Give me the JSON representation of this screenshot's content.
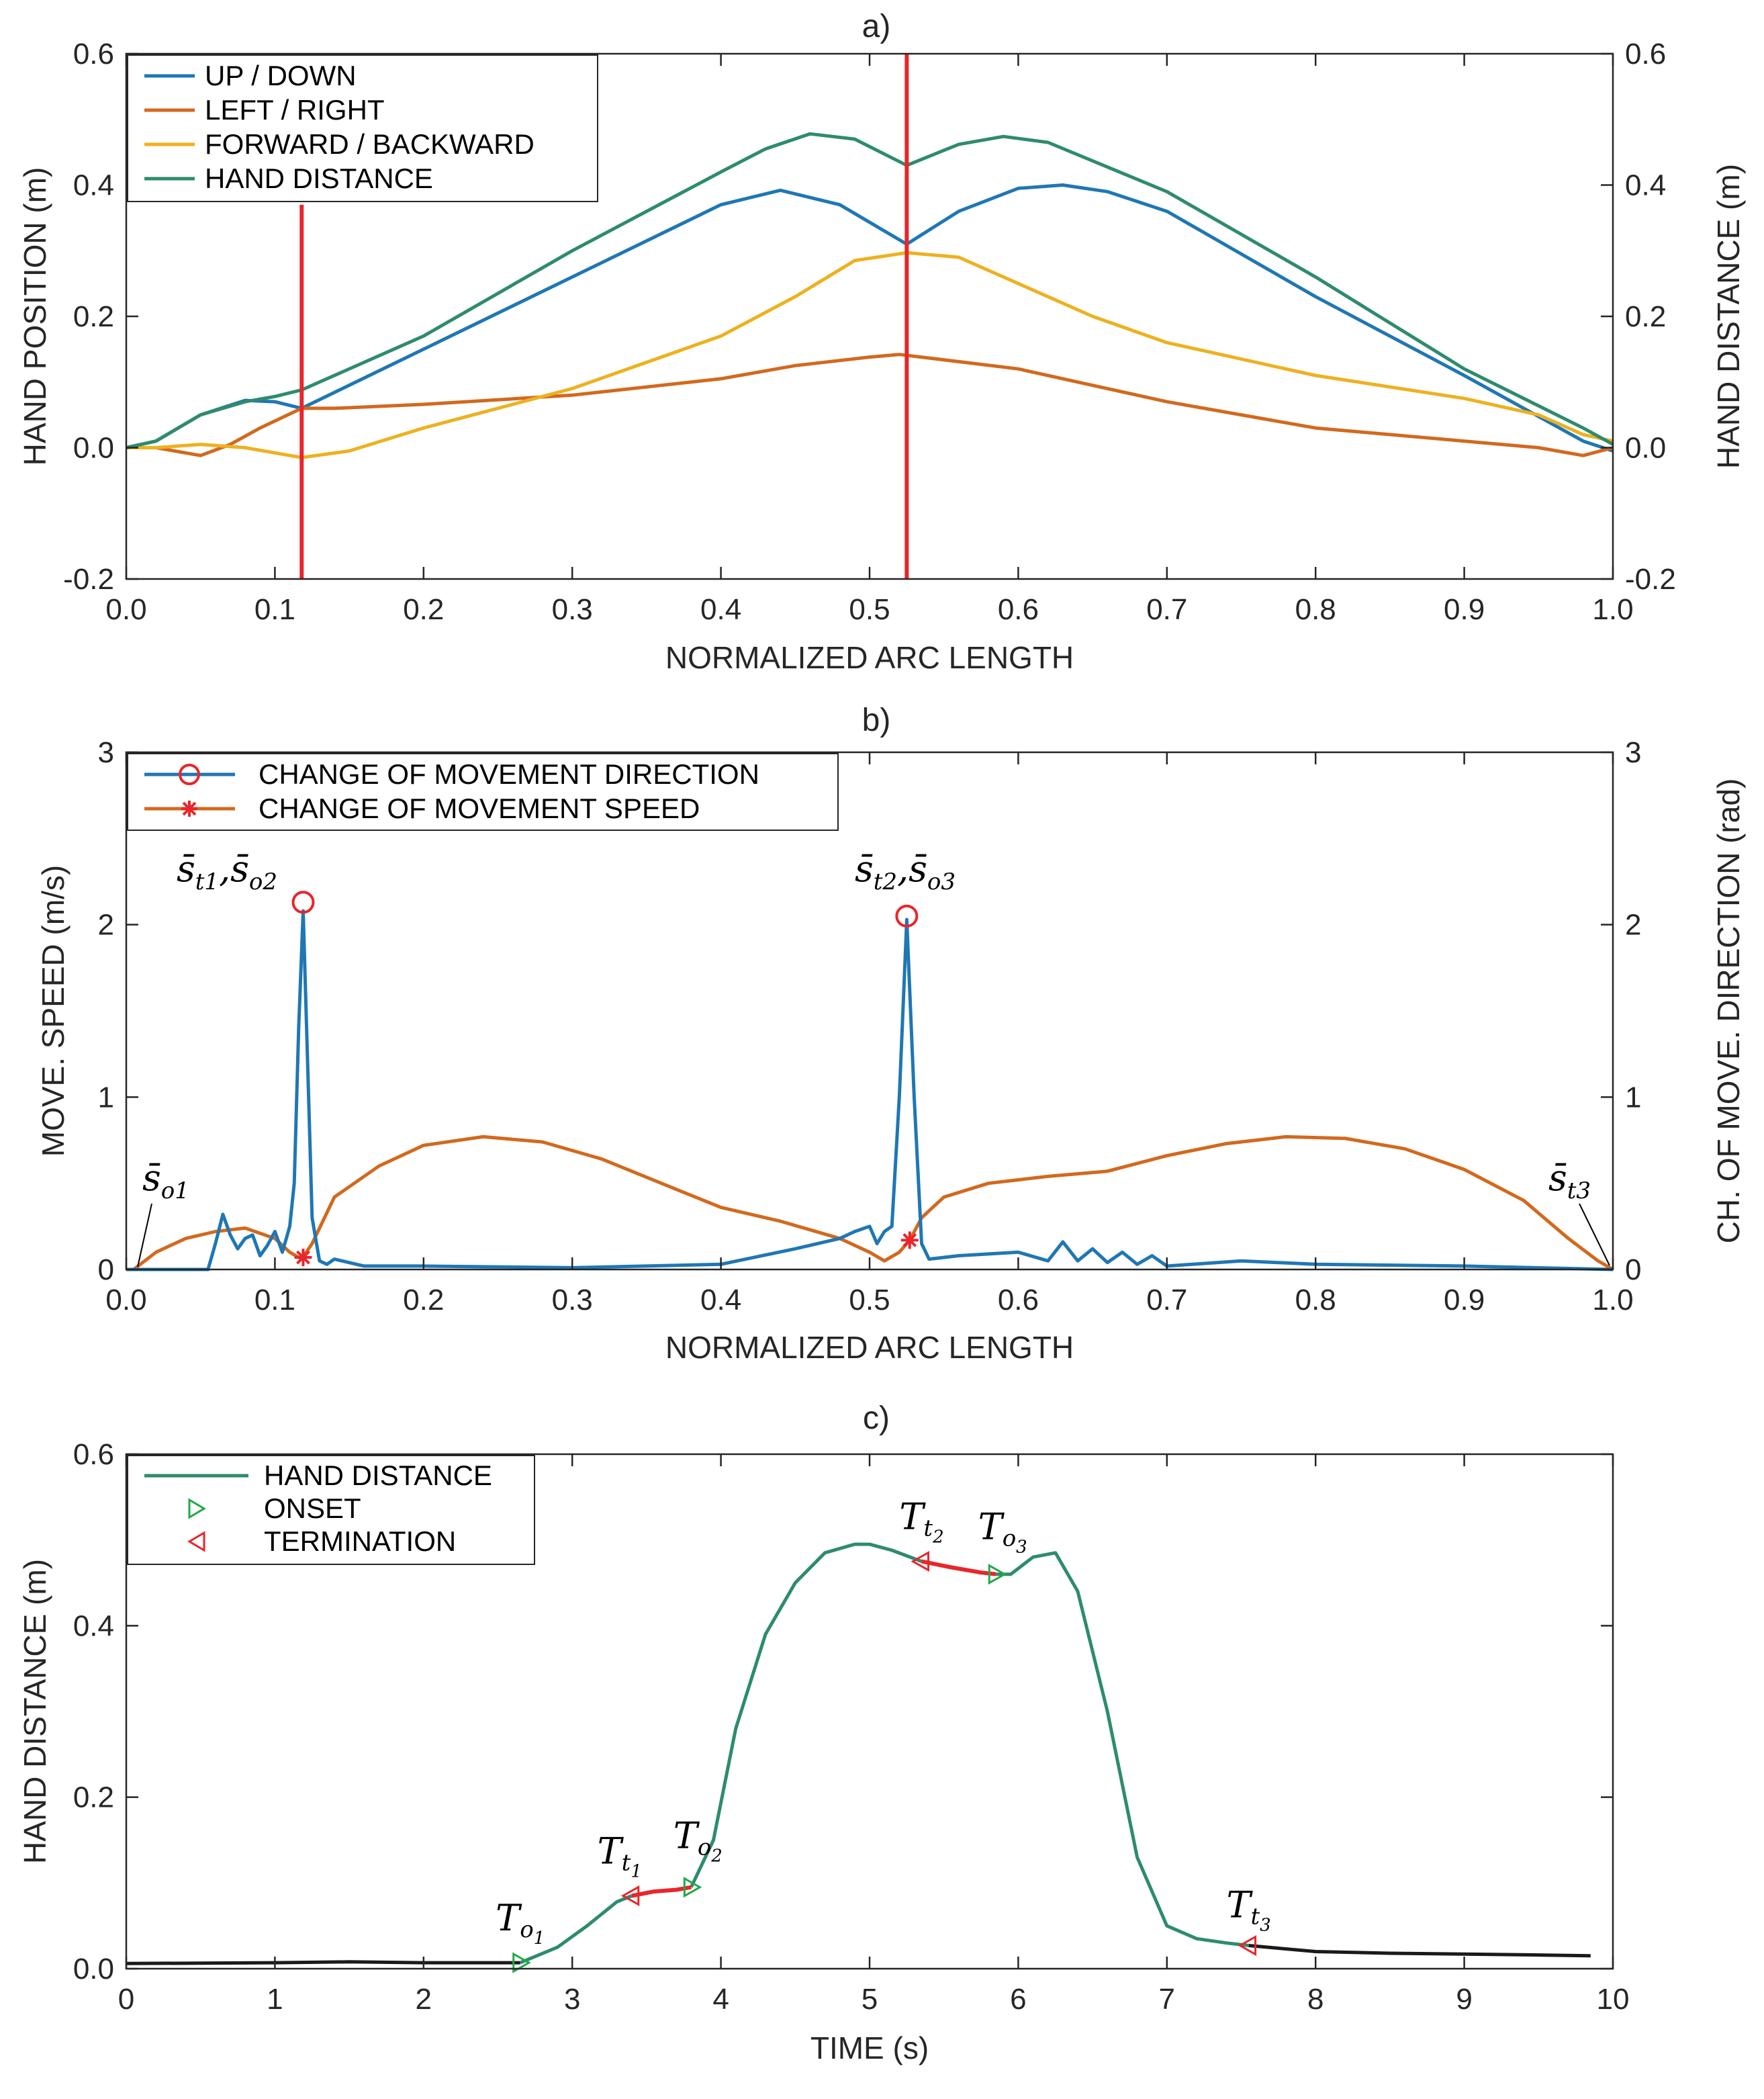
{
  "colors": {
    "up_down": "#1F77B4",
    "left_right": "#D2691E",
    "forward_backward": "#EDB120",
    "hand_distance": "#2E8B6E",
    "marker": "#E8262B",
    "onset": "#22A84A",
    "idle": "#1A1A1A"
  },
  "chart_data": [
    {
      "type": "line",
      "title": "a)",
      "xlabel": "NORMALIZED ARC LENGTH",
      "ylabel": "HAND POSITION (m)",
      "ylabel_right": "HAND DISTANCE (m)",
      "xlim": [
        0,
        1
      ],
      "ylim": [
        -0.2,
        0.6
      ],
      "xticks": [
        0.0,
        0.1,
        0.2,
        0.3,
        0.4,
        0.5,
        0.6,
        0.7,
        0.8,
        0.9,
        1.0
      ],
      "xtick_labels": [
        "0.0",
        "0.1",
        "0.2",
        "0.3",
        "0.4",
        "0.5",
        "0.6",
        "0.7",
        "0.8",
        "0.9",
        "1.0"
      ],
      "yticks": [
        -0.2,
        0.0,
        0.2,
        0.4,
        0.6
      ],
      "ytick_labels": [
        "-0.2",
        "0.0",
        "0.2",
        "0.4",
        "0.6"
      ],
      "ytick_labels_right": [
        "-0.2",
        "0.0",
        "0.2",
        "0.4",
        "0.6"
      ],
      "legend_position": "top-left",
      "vlines": [
        0.118,
        0.525
      ],
      "series": [
        {
          "name": "UP / DOWN",
          "color_key": "up_down",
          "x": [
            0,
            0.02,
            0.05,
            0.08,
            0.1,
            0.118,
            0.2,
            0.3,
            0.4,
            0.44,
            0.48,
            0.525,
            0.56,
            0.6,
            0.63,
            0.66,
            0.7,
            0.8,
            0.9,
            0.98,
            1.0
          ],
          "y": [
            0,
            0.01,
            0.05,
            0.072,
            0.07,
            0.06,
            0.15,
            0.26,
            0.37,
            0.392,
            0.37,
            0.31,
            0.36,
            0.395,
            0.4,
            0.39,
            0.36,
            0.23,
            0.11,
            0.01,
            -0.005
          ]
        },
        {
          "name": "LEFT / RIGHT",
          "color_key": "left_right",
          "x": [
            0,
            0.02,
            0.04,
            0.05,
            0.07,
            0.09,
            0.118,
            0.14,
            0.2,
            0.3,
            0.4,
            0.45,
            0.5,
            0.52,
            0.6,
            0.7,
            0.8,
            0.9,
            0.95,
            0.98,
            1.0
          ],
          "y": [
            0,
            0,
            -0.008,
            -0.012,
            0.005,
            0.03,
            0.06,
            0.06,
            0.066,
            0.08,
            0.105,
            0.125,
            0.138,
            0.142,
            0.12,
            0.07,
            0.03,
            0.01,
            0.0,
            -0.012,
            0.0
          ]
        },
        {
          "name": "FORWARD / BACKWARD",
          "color_key": "forward_backward",
          "x": [
            0,
            0.02,
            0.05,
            0.08,
            0.118,
            0.15,
            0.2,
            0.3,
            0.4,
            0.45,
            0.49,
            0.525,
            0.56,
            0.6,
            0.65,
            0.7,
            0.8,
            0.9,
            0.95,
            0.98,
            1.0
          ],
          "y": [
            0,
            0.0,
            0.005,
            0.0,
            -0.015,
            -0.005,
            0.03,
            0.09,
            0.17,
            0.23,
            0.285,
            0.297,
            0.29,
            0.25,
            0.2,
            0.16,
            0.11,
            0.075,
            0.05,
            0.02,
            0.01
          ]
        },
        {
          "name": "HAND DISTANCE",
          "color_key": "hand_distance",
          "x": [
            0,
            0.02,
            0.05,
            0.08,
            0.1,
            0.118,
            0.2,
            0.3,
            0.4,
            0.43,
            0.46,
            0.49,
            0.525,
            0.56,
            0.59,
            0.62,
            0.7,
            0.8,
            0.9,
            0.98,
            1.0
          ],
          "y": [
            0,
            0.01,
            0.05,
            0.07,
            0.078,
            0.088,
            0.17,
            0.3,
            0.42,
            0.455,
            0.478,
            0.47,
            0.43,
            0.462,
            0.474,
            0.465,
            0.39,
            0.26,
            0.12,
            0.03,
            0.005
          ]
        }
      ]
    },
    {
      "type": "line",
      "title": "b)",
      "xlabel": "NORMALIZED ARC LENGTH",
      "ylabel": "MOVE. SPEED (m/s)",
      "ylabel_right": "CH. OF MOVE. DIRECTION (rad)",
      "xlim": [
        0,
        1
      ],
      "ylim": [
        0,
        3
      ],
      "xticks": [
        0.0,
        0.1,
        0.2,
        0.3,
        0.4,
        0.5,
        0.6,
        0.7,
        0.8,
        0.9,
        1.0
      ],
      "xtick_labels": [
        "0.0",
        "0.1",
        "0.2",
        "0.3",
        "0.4",
        "0.5",
        "0.6",
        "0.7",
        "0.8",
        "0.9",
        "1.0"
      ],
      "yticks": [
        0,
        1,
        2,
        3
      ],
      "ytick_labels": [
        "0",
        "1",
        "2",
        "3"
      ],
      "ytick_labels_right": [
        "0",
        "1",
        "2",
        "3"
      ],
      "legend_position": "top-left",
      "series": [
        {
          "name": "CHANGE OF MOVEMENT DIRECTION",
          "color_key": "up_down",
          "x": [
            0,
            0.055,
            0.06,
            0.065,
            0.07,
            0.075,
            0.08,
            0.085,
            0.09,
            0.095,
            0.1,
            0.105,
            0.11,
            0.113,
            0.116,
            0.119,
            0.122,
            0.125,
            0.13,
            0.135,
            0.14,
            0.16,
            0.2,
            0.3,
            0.4,
            0.45,
            0.48,
            0.49,
            0.5,
            0.505,
            0.51,
            0.515,
            0.52,
            0.525,
            0.53,
            0.535,
            0.54,
            0.56,
            0.6,
            0.62,
            0.63,
            0.64,
            0.65,
            0.66,
            0.67,
            0.68,
            0.69,
            0.7,
            0.75,
            0.8,
            0.9,
            1.0
          ],
          "y": [
            0,
            0.0,
            0.15,
            0.32,
            0.2,
            0.12,
            0.18,
            0.2,
            0.08,
            0.14,
            0.22,
            0.1,
            0.25,
            0.5,
            1.4,
            2.08,
            1.2,
            0.3,
            0.05,
            0.03,
            0.06,
            0.02,
            0.02,
            0.01,
            0.03,
            0.12,
            0.18,
            0.22,
            0.25,
            0.15,
            0.22,
            0.25,
            1.0,
            2.03,
            1.0,
            0.15,
            0.06,
            0.08,
            0.1,
            0.05,
            0.16,
            0.05,
            0.12,
            0.04,
            0.1,
            0.03,
            0.08,
            0.02,
            0.05,
            0.03,
            0.02,
            0.0
          ]
        },
        {
          "name": "CHANGE OF MOVEMENT SPEED",
          "color_key": "left_right",
          "x": [
            0.005,
            0.02,
            0.04,
            0.06,
            0.08,
            0.1,
            0.11,
            0.118,
            0.125,
            0.14,
            0.17,
            0.2,
            0.24,
            0.28,
            0.32,
            0.36,
            0.4,
            0.44,
            0.48,
            0.5,
            0.51,
            0.52,
            0.527,
            0.535,
            0.55,
            0.58,
            0.62,
            0.66,
            0.7,
            0.74,
            0.78,
            0.82,
            0.86,
            0.9,
            0.94,
            0.97,
            0.99,
            1.0
          ],
          "y": [
            0.0,
            0.1,
            0.18,
            0.22,
            0.24,
            0.18,
            0.1,
            0.06,
            0.15,
            0.42,
            0.6,
            0.72,
            0.77,
            0.74,
            0.64,
            0.5,
            0.36,
            0.28,
            0.18,
            0.1,
            0.05,
            0.1,
            0.17,
            0.3,
            0.42,
            0.5,
            0.54,
            0.57,
            0.66,
            0.73,
            0.77,
            0.76,
            0.7,
            0.58,
            0.4,
            0.18,
            0.05,
            0.0
          ]
        }
      ],
      "markers": {
        "direction_peaks": [
          {
            "x": 0.119,
            "y": 2.13
          },
          {
            "x": 0.525,
            "y": 2.05
          }
        ],
        "speed_minima": [
          {
            "x": 0.119,
            "y": 0.07
          },
          {
            "x": 0.527,
            "y": 0.17
          }
        ]
      },
      "annotations": {
        "peak1": {
          "x": 0.119,
          "y": 2.13,
          "base": "s̄",
          "sub_a": "t1",
          "sep": ",",
          "base_b": "s̄",
          "sub_b": "o2"
        },
        "peak2": {
          "x": 0.525,
          "y": 2.05,
          "base": "s̄",
          "sub_a": "t2",
          "sep": ",",
          "base_b": "s̄",
          "sub_b": "o3"
        },
        "start": {
          "x": 0.005,
          "y": 0.0,
          "base": "s̄",
          "sub_a": "o1"
        },
        "end": {
          "x": 0.998,
          "y": 0.0,
          "base": "s̄",
          "sub_a": "t3"
        }
      }
    },
    {
      "type": "line",
      "title": "c)",
      "xlabel": "TIME (s)",
      "ylabel": "HAND DISTANCE (m)",
      "xlim": [
        0,
        10
      ],
      "ylim": [
        0,
        0.6
      ],
      "xticks": [
        0,
        1,
        2,
        3,
        4,
        5,
        6,
        7,
        8,
        9,
        10
      ],
      "xtick_labels": [
        "0",
        "1",
        "2",
        "3",
        "4",
        "5",
        "6",
        "7",
        "8",
        "9",
        "10"
      ],
      "yticks": [
        0.0,
        0.2,
        0.4,
        0.6
      ],
      "ytick_labels": [
        "0.0",
        "0.2",
        "0.4",
        "0.6"
      ],
      "legend_position": "top-left",
      "legend": {
        "line": "HAND DISTANCE",
        "onset": "ONSET",
        "termination": "TERMINATION"
      },
      "idle_before": {
        "x": [
          0,
          1,
          1.5,
          2,
          2.65
        ],
        "y": [
          0.006,
          0.007,
          0.008,
          0.007,
          0.007
        ]
      },
      "idle_after": {
        "x": [
          7.55,
          8,
          8.5,
          9,
          9.5,
          9.85
        ],
        "y": [
          0.027,
          0.02,
          0.018,
          0.017,
          0.016,
          0.015
        ]
      },
      "moving_segments": [
        {
          "x": [
            2.65,
            2.9,
            3.1,
            3.3,
            3.4
          ],
          "y": [
            0.007,
            0.025,
            0.05,
            0.078,
            0.085
          ]
        },
        {
          "x": [
            3.8,
            3.95,
            4.1,
            4.3,
            4.5,
            4.7,
            4.9,
            5.0,
            5.15,
            5.35
          ],
          "y": [
            0.095,
            0.15,
            0.28,
            0.39,
            0.45,
            0.485,
            0.495,
            0.495,
            0.488,
            0.475
          ]
        },
        {
          "x": [
            5.85,
            5.95,
            6.1,
            6.25,
            6.4,
            6.6,
            6.8,
            7.0,
            7.2,
            7.4,
            7.55
          ],
          "y": [
            0.46,
            0.46,
            0.48,
            0.485,
            0.44,
            0.3,
            0.13,
            0.05,
            0.035,
            0.03,
            0.027
          ]
        }
      ],
      "transition_segments": [
        {
          "x": [
            3.4,
            3.55,
            3.7,
            3.8
          ],
          "y": [
            0.085,
            0.09,
            0.092,
            0.095
          ]
        },
        {
          "x": [
            5.35,
            5.55,
            5.75,
            5.85
          ],
          "y": [
            0.475,
            0.468,
            0.462,
            0.46
          ]
        }
      ],
      "onsets": [
        {
          "x": 2.65,
          "y": 0.007
        },
        {
          "x": 3.8,
          "y": 0.095
        },
        {
          "x": 5.85,
          "y": 0.46
        }
      ],
      "terminations": [
        {
          "x": 3.4,
          "y": 0.085
        },
        {
          "x": 5.35,
          "y": 0.475
        },
        {
          "x": 7.55,
          "y": 0.027
        }
      ],
      "annotations": [
        {
          "x": 2.65,
          "y": 0.007,
          "base": "T",
          "sub": "o",
          "subsub": "1"
        },
        {
          "x": 3.4,
          "y": 0.085,
          "base": "T",
          "sub": "t",
          "subsub": "1"
        },
        {
          "x": 3.8,
          "y": 0.095,
          "base": "T",
          "sub": "o",
          "subsub": "2"
        },
        {
          "x": 5.35,
          "y": 0.475,
          "base": "T",
          "sub": "t",
          "subsub": "2"
        },
        {
          "x": 5.85,
          "y": 0.46,
          "base": "T",
          "sub": "o",
          "subsub": "3"
        },
        {
          "x": 7.55,
          "y": 0.027,
          "base": "T",
          "sub": "t",
          "subsub": "3"
        }
      ]
    }
  ]
}
